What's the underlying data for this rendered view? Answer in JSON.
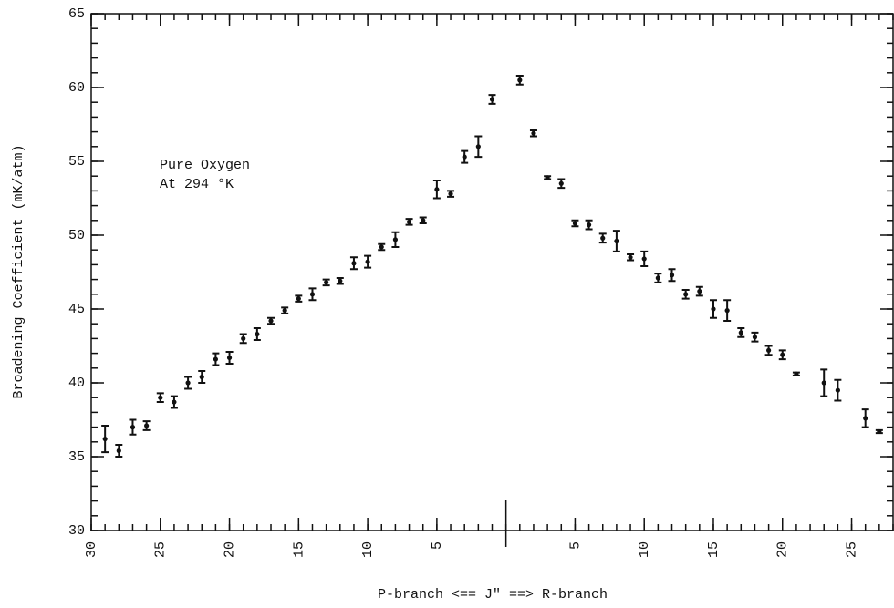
{
  "chart_data": {
    "type": "errorbar",
    "xlabel": "P-branch <== J\" ==> R-branch",
    "ylabel": "Broadening Coefficient (mK/atm)",
    "annotations": [
      "Pure Oxygen",
      "At 294 °K"
    ],
    "xlim": [
      -30,
      28
    ],
    "ylim": [
      30,
      65
    ],
    "xticks": [
      {
        "value": -30,
        "label": "30"
      },
      {
        "value": -25,
        "label": "25"
      },
      {
        "value": -20,
        "label": "20"
      },
      {
        "value": -15,
        "label": "15"
      },
      {
        "value": -10,
        "label": "10"
      },
      {
        "value": -5,
        "label": "5"
      },
      5,
      10,
      15,
      20,
      25
    ],
    "yticks": [
      30,
      35,
      40,
      45,
      50,
      55,
      60,
      65
    ],
    "color": "#111111",
    "x": [
      -29,
      -28,
      -27,
      -26,
      -25,
      -24,
      -23,
      -22,
      -21,
      -20,
      -19,
      -18,
      -17,
      -16,
      -15,
      -14,
      -13,
      -12,
      -11,
      -10,
      -9,
      -8,
      -7,
      -6,
      -5,
      -4,
      -3,
      -2,
      -1,
      1,
      2,
      3,
      4,
      5,
      6,
      7,
      8,
      9,
      10,
      11,
      12,
      13,
      14,
      15,
      16,
      17,
      18,
      19,
      20,
      21,
      23,
      24,
      26,
      27
    ],
    "values": [
      36.2,
      35.4,
      37.0,
      37.1,
      39.0,
      38.7,
      40.0,
      40.4,
      41.6,
      41.7,
      43.0,
      43.3,
      44.2,
      44.9,
      45.7,
      46.0,
      46.8,
      46.9,
      48.1,
      48.2,
      49.2,
      49.7,
      50.9,
      51.0,
      53.1,
      52.8,
      55.3,
      56.0,
      59.2,
      60.5,
      56.9,
      53.9,
      53.5,
      50.8,
      50.7,
      49.8,
      49.6,
      48.5,
      48.4,
      47.1,
      47.3,
      46.0,
      46.2,
      45.0,
      44.9,
      43.4,
      43.1,
      42.2,
      41.9,
      40.6,
      40.0,
      39.5,
      37.6,
      36.7
    ],
    "errors": [
      0.9,
      0.4,
      0.5,
      0.3,
      0.3,
      0.4,
      0.4,
      0.4,
      0.4,
      0.4,
      0.3,
      0.4,
      0.2,
      0.2,
      0.2,
      0.4,
      0.2,
      0.2,
      0.4,
      0.4,
      0.2,
      0.5,
      0.2,
      0.2,
      0.6,
      0.2,
      0.4,
      0.7,
      0.3,
      0.3,
      0.2,
      0.1,
      0.3,
      0.2,
      0.3,
      0.3,
      0.7,
      0.2,
      0.5,
      0.3,
      0.4,
      0.3,
      0.3,
      0.6,
      0.7,
      0.3,
      0.3,
      0.3,
      0.3,
      0.1,
      0.9,
      0.7,
      0.6,
      0.1
    ]
  }
}
